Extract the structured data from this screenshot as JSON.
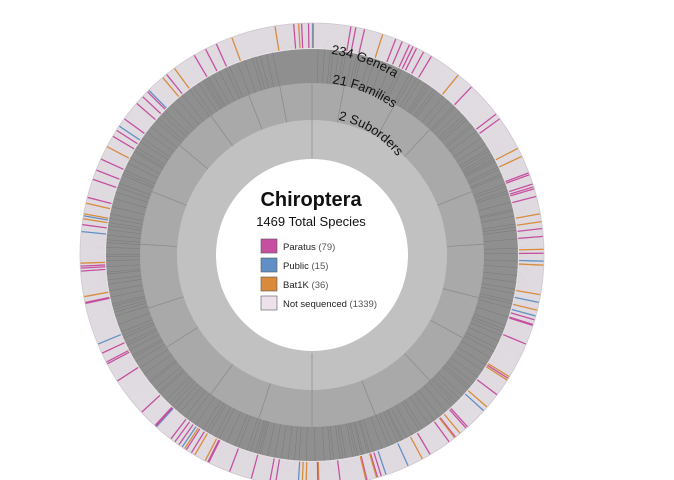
{
  "chart_data": {
    "type": "sunburst",
    "title": "Chiroptera",
    "subtitle": "1469 Total Species",
    "rings": [
      {
        "label": "2 Suborders",
        "count": 2
      },
      {
        "label": "21 Families",
        "count": 21
      },
      {
        "label": "234 Genera",
        "count": 234
      },
      {
        "label": "",
        "count": 1469
      }
    ],
    "legend": [
      {
        "label": "Paratus",
        "count_label": "(79)",
        "count": 79,
        "color": "#c64fa0"
      },
      {
        "label": "Public",
        "count_label": "(15)",
        "count": 15,
        "color": "#5f8fc4"
      },
      {
        "label": "Bat1K",
        "count_label": "(36)",
        "count": 36,
        "color": "#d98b3b"
      },
      {
        "label": "Not sequenced",
        "count_label": "(1339)",
        "count": 1339,
        "color": "#ede2ec"
      }
    ],
    "colors": {
      "ring_suborders": "#c1c1c1",
      "ring_families": "#a9a9a9",
      "ring_genera": "#8f8f8f",
      "ring_species": "#e6e2e6"
    }
  }
}
